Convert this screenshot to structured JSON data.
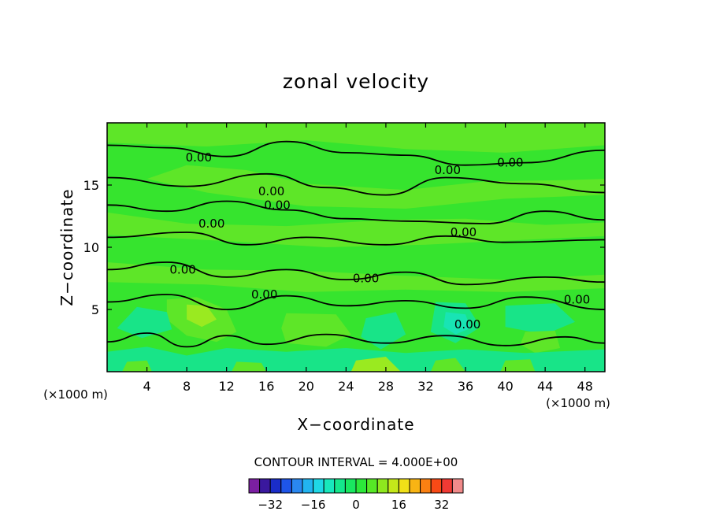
{
  "chart_data": {
    "type": "heatmap",
    "title": "zonal velocity",
    "xlabel": "X−coordinate",
    "ylabel": "Z−coordinate",
    "x_unit_left": "(×1000 m)",
    "x_unit_right": "(×1000 m)",
    "xlim": [
      0,
      50
    ],
    "ylim": [
      0,
      20
    ],
    "x_ticks": [
      4,
      8,
      12,
      16,
      20,
      24,
      28,
      32,
      36,
      40,
      44,
      48
    ],
    "y_ticks": [
      5,
      10,
      15
    ],
    "contour_interval_text": "CONTOUR INTERVAL = 4.000E+00",
    "contour_interval": 4,
    "contour_labels": [
      {
        "text": "0.00",
        "x": 9.2,
        "y": 17.2
      },
      {
        "text": "0.00",
        "x": 16.5,
        "y": 14.5
      },
      {
        "text": "0.00",
        "x": 17.1,
        "y": 13.4
      },
      {
        "text": "0.00",
        "x": 34.2,
        "y": 16.2
      },
      {
        "text": "0.00",
        "x": 40.5,
        "y": 16.8
      },
      {
        "text": "0.00",
        "x": 10.5,
        "y": 11.9
      },
      {
        "text": "0.00",
        "x": 35.8,
        "y": 11.2
      },
      {
        "text": "0.00",
        "x": 7.6,
        "y": 8.2
      },
      {
        "text": "0.00",
        "x": 26.0,
        "y": 7.5
      },
      {
        "text": "0.00",
        "x": 15.8,
        "y": 6.2
      },
      {
        "text": "0.00",
        "x": 47.2,
        "y": 5.8
      },
      {
        "text": "0.00",
        "x": 36.2,
        "y": 3.8
      }
    ],
    "colorbar": {
      "levels": [
        -40,
        -36,
        -32,
        -28,
        -24,
        -20,
        -16,
        -12,
        -8,
        -4,
        0,
        4,
        8,
        12,
        16,
        20,
        24,
        28,
        32,
        36
      ],
      "colors": [
        "#7b1fa2",
        "#3a189e",
        "#1a2dc8",
        "#1e55e8",
        "#2a88f0",
        "#22b4f0",
        "#1fd8e6",
        "#18e8bc",
        "#14e88c",
        "#19e860",
        "#2ce83a",
        "#56e826",
        "#8ee81e",
        "#c4e81a",
        "#f0e018",
        "#f8b414",
        "#fa8012",
        "#f84a16",
        "#f03a34",
        "#f08a8a"
      ],
      "tick_labels": [
        "−32",
        "−16",
        "0",
        "16",
        "32"
      ],
      "tick_values": [
        -32,
        -16,
        0,
        16,
        32
      ]
    },
    "field_colors": {
      "background": "#36e42e",
      "positive": "#5ee628",
      "positive_strong": "#9aea20",
      "negative": "#18e488",
      "negative_strong": "#18e4b4"
    },
    "grid": false
  }
}
